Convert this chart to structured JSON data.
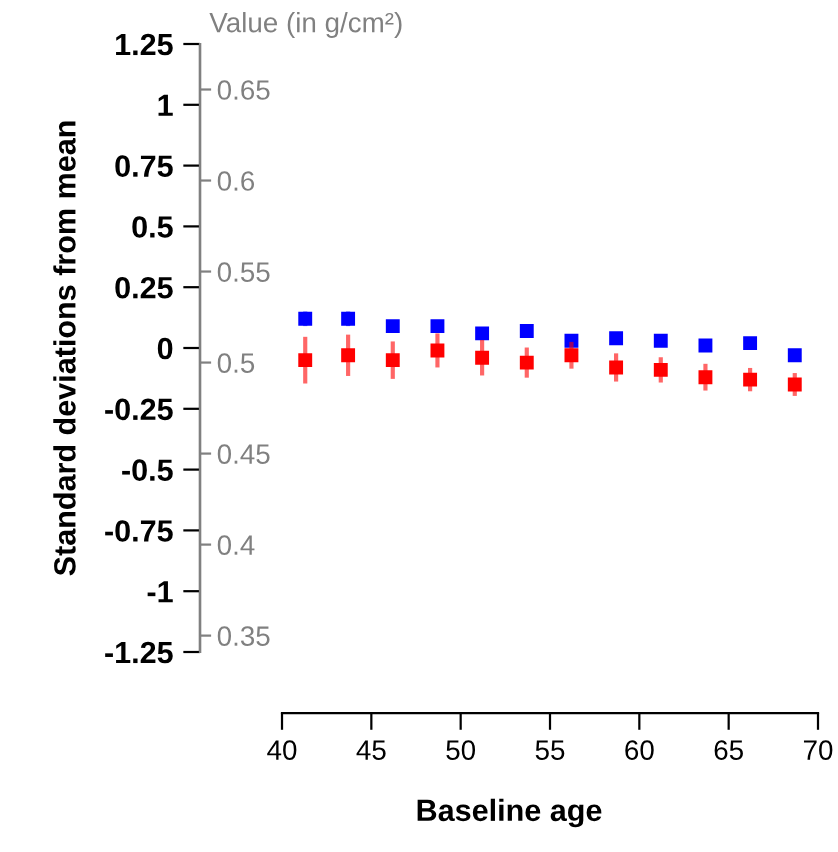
{
  "chart_data": {
    "type": "scatter",
    "xlabel": "Baseline age",
    "ylabel": "Standard deviations from mean",
    "y2label": "Value (in g/cm²)",
    "x": [
      41.3,
      43.7,
      46.2,
      48.7,
      51.2,
      53.7,
      56.2,
      58.7,
      61.2,
      63.7,
      66.2,
      68.7
    ],
    "series": [
      {
        "color": "#0000ff",
        "values": [
          0.12,
          0.12,
          0.09,
          0.09,
          0.06,
          0.07,
          0.03,
          0.04,
          0.03,
          0.01,
          0.02,
          -0.03
        ],
        "errors": [
          0.03,
          0.03,
          0.025,
          0.025,
          0.025,
          0.025,
          0.02,
          0.02,
          0.02,
          0.02,
          0.02,
          0.025
        ]
      },
      {
        "color": "#ff0000",
        "values": [
          -0.05,
          -0.03,
          -0.05,
          -0.01,
          -0.04,
          -0.06,
          -0.03,
          -0.08,
          -0.09,
          -0.12,
          -0.13,
          -0.15
        ],
        "errors": [
          0.096,
          0.085,
          0.077,
          0.07,
          0.073,
          0.062,
          0.055,
          0.058,
          0.052,
          0.055,
          0.048,
          0.047
        ]
      }
    ],
    "marker": "square",
    "grid": false,
    "legend": false,
    "xlim": [
      35.41,
      70
    ],
    "xticks": [
      40,
      45,
      50,
      55,
      60,
      65,
      70
    ],
    "ylim": [
      -1.25,
      1.25
    ],
    "yticks": [
      1.25,
      1,
      0.75,
      0.5,
      0.25,
      0,
      {
        "value": -0.25,
        "label": "-0.25"
      },
      {
        "value": -0.5,
        "label": "-0.5"
      },
      {
        "value": -0.75,
        "label": "-0.75"
      },
      {
        "value": -1,
        "label": "-1"
      },
      {
        "value": -1.25,
        "label": "-1.25"
      }
    ],
    "y2lim": [
      0.341,
      0.675
    ],
    "y2ticks": [
      0.65,
      0.6,
      0.55,
      0.5,
      0.45,
      0.4,
      0.35
    ]
  }
}
